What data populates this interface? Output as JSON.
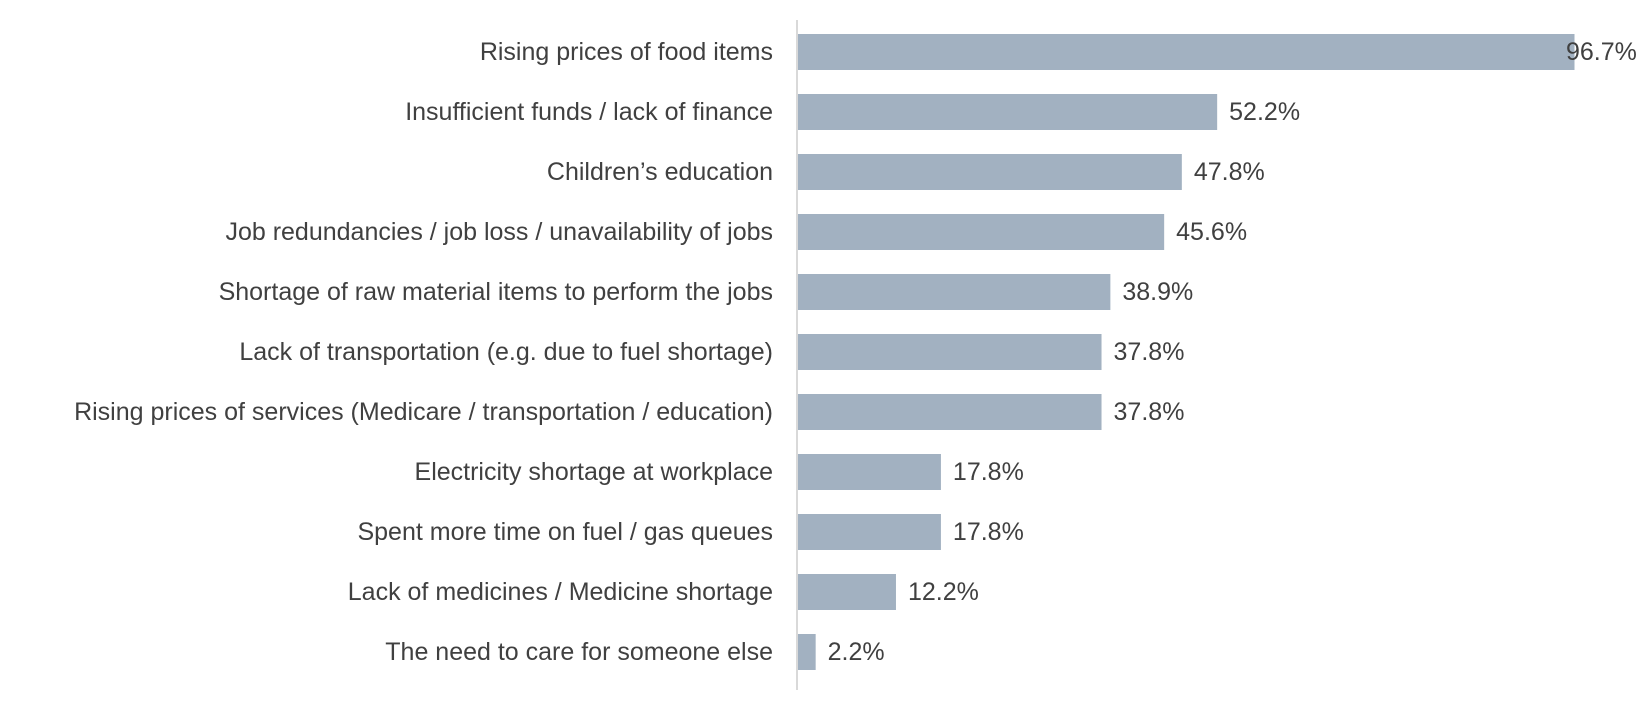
{
  "chart_data": {
    "type": "bar",
    "orientation": "horizontal",
    "categories": [
      "Rising prices of food items",
      "Insufficient funds / lack of finance",
      "Children’s education",
      "Job redundancies / job loss / unavailability of jobs",
      "Shortage of raw material items to perform the jobs",
      "Lack of transportation (e.g. due to fuel shortage)",
      "Rising prices of services (Medicare / transportation / education)",
      "Electricity shortage at workplace",
      "Spent more time on fuel / gas queues",
      "Lack of medicines / Medicine shortage",
      "The need to care for someone else"
    ],
    "values": [
      96.7,
      52.2,
      47.8,
      45.6,
      38.9,
      37.8,
      37.8,
      17.8,
      17.8,
      12.2,
      2.2
    ],
    "value_labels": [
      "96.7%",
      "52.2%",
      "47.8%",
      "45.6%",
      "38.9%",
      "37.8%",
      "37.8%",
      "17.8%",
      "17.8%",
      "12.2%",
      "2.2%"
    ],
    "xlim": [
      0,
      100
    ],
    "grid": false,
    "legend": false,
    "bar_color": "#a2b1c1",
    "axis_color": "#d9d9d9",
    "text_color": "#404040"
  }
}
